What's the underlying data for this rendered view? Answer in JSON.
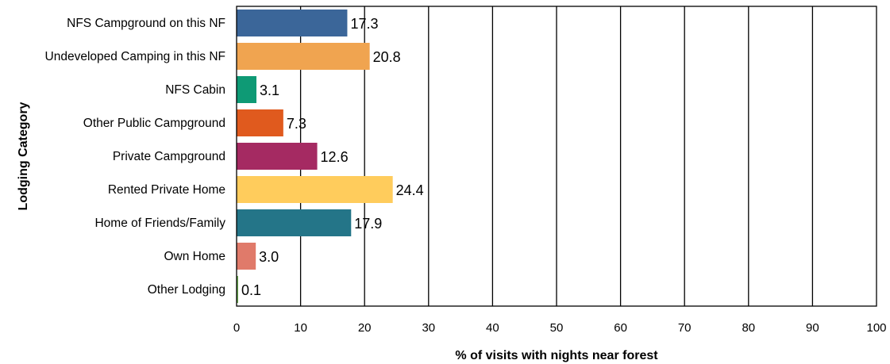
{
  "chart_data": {
    "type": "bar",
    "orientation": "horizontal",
    "categories": [
      "NFS Campground on this NF",
      "Undeveloped Camping in this NF",
      "NFS Cabin",
      "Other Public Campground",
      "Private Campground",
      "Rented Private Home",
      "Home of Friends/Family",
      "Own Home",
      "Other Lodging"
    ],
    "values": [
      17.3,
      20.8,
      3.1,
      7.3,
      12.6,
      24.4,
      17.9,
      3.0,
      0.1
    ],
    "value_labels": [
      "17.3",
      "20.8",
      "3.1",
      "7.3",
      "12.6",
      "24.4",
      "17.9",
      "3.0",
      "0.1"
    ],
    "colors": [
      "#3B6699",
      "#F0A450",
      "#0E9A75",
      "#E05A1E",
      "#A52A62",
      "#FFCC5C",
      "#247588",
      "#E07A6A",
      "#6AA84F"
    ],
    "xlabel": "% of visits with nights near forest",
    "ylabel": "Lodging Category",
    "xlim": [
      0,
      100
    ],
    "xticks": [
      "0",
      "10",
      "20",
      "30",
      "40",
      "50",
      "60",
      "70",
      "80",
      "90",
      "100"
    ],
    "grid": "vertical",
    "legend": "none"
  }
}
